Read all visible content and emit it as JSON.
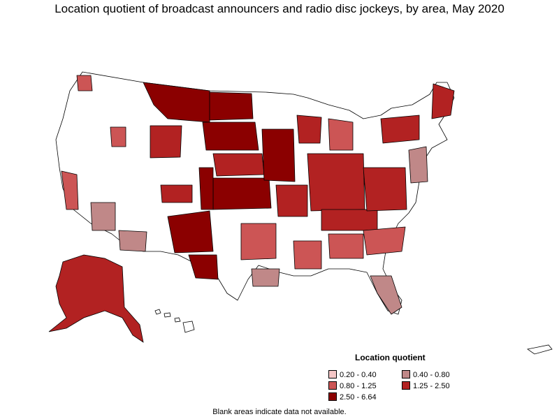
{
  "title": "Location quotient of broadcast announcers and radio disc jockeys, by area, May 2020",
  "legend": {
    "title": "Location quotient",
    "items": [
      {
        "label": "0.20 - 0.40",
        "color": "#f5c6c6"
      },
      {
        "label": "0.40 - 0.80",
        "color": "#c08888"
      },
      {
        "label": "0.80 - 1.25",
        "color": "#cc5555"
      },
      {
        "label": "1.25 - 2.50",
        "color": "#b22222"
      },
      {
        "label": "2.50 - 6.64",
        "color": "#8b0000"
      }
    ]
  },
  "footnote": "Blank areas indicate data not available.",
  "colors": {
    "blank": "#ffffff",
    "border": "#000000",
    "q_0_20_0_40": "#f5c6c6",
    "q_0_40_0_80": "#c08888",
    "q_0_80_1_25": "#cc5555",
    "q_1_25_2_50": "#b22222",
    "q_2_50_6_64": "#8b0000"
  }
}
